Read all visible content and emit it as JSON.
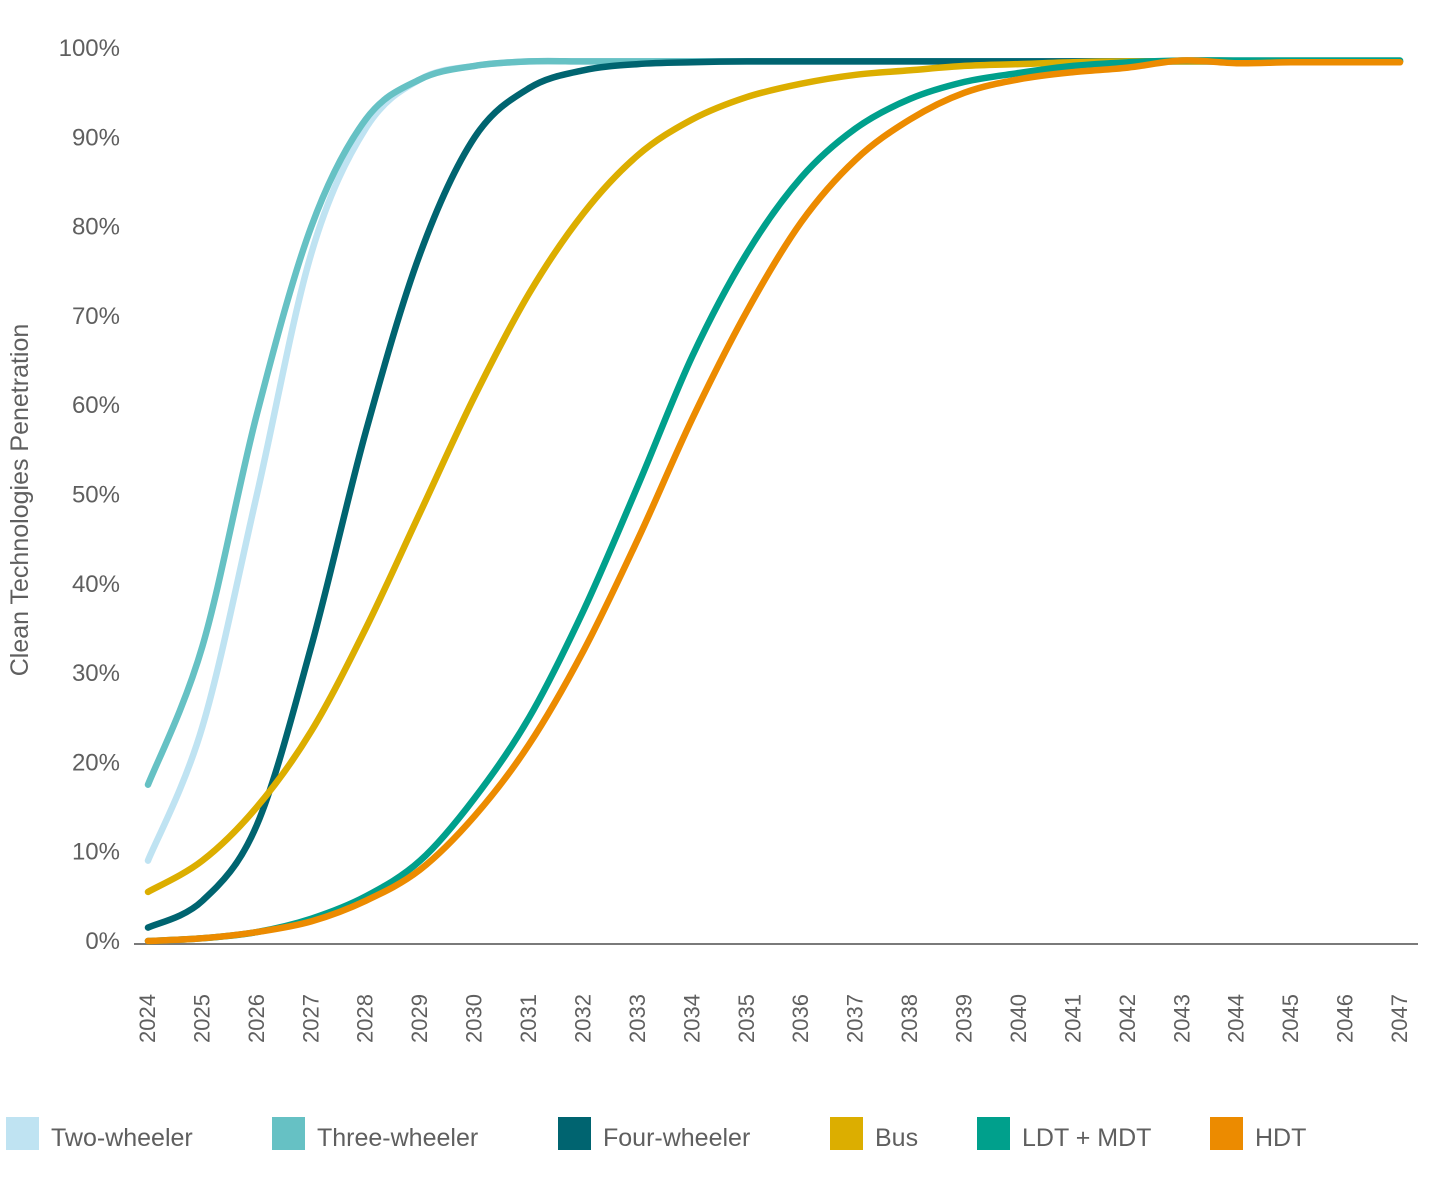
{
  "chart_data": {
    "type": "line",
    "title": "",
    "xlabel": "",
    "ylabel": "Clean Technologies Penetration",
    "x": [
      "2024",
      "2025",
      "2026",
      "2027",
      "2028",
      "2029",
      "2030",
      "2031",
      "2032",
      "2033",
      "2034",
      "2035",
      "2036",
      "2037",
      "2038",
      "2039",
      "2040",
      "2041",
      "2042",
      "2043",
      "2044",
      "2045",
      "2046",
      "2047"
    ],
    "ylim": [
      0,
      100
    ],
    "yticks": [
      0,
      10,
      20,
      30,
      40,
      50,
      60,
      70,
      80,
      90,
      100
    ],
    "ytick_labels": [
      "0%",
      "10%",
      "20%",
      "30%",
      "40%",
      "50%",
      "60%",
      "70%",
      "80%",
      "90%",
      "100%"
    ],
    "grid": false,
    "legend_position": "bottom",
    "series": [
      {
        "name": "Two-wheeler",
        "color": "#bfe3f2",
        "values": [
          9,
          24,
          50,
          77,
          91,
          96.5,
          98,
          98.5,
          98.5,
          98.5,
          98.5,
          98.5,
          98.5,
          98.5,
          98.5,
          98.5,
          98.5,
          98.5,
          98.5,
          98.5,
          98.5,
          98.5,
          98.5,
          98.5
        ]
      },
      {
        "name": "Three-wheeler",
        "color": "#66c1c4",
        "values": [
          17.5,
          33,
          59,
          80,
          92,
          96.5,
          98,
          98.5,
          98.5,
          98.5,
          98.5,
          98.5,
          98.5,
          98.5,
          98.5,
          98.5,
          98.5,
          98.5,
          98.5,
          98.5,
          98.5,
          98.5,
          98.5,
          98.5
        ]
      },
      {
        "name": "Four-wheeler",
        "color": "#006470",
        "values": [
          1.5,
          4.5,
          13,
          33,
          57,
          77,
          90,
          95.5,
          97.5,
          98.2,
          98.4,
          98.5,
          98.5,
          98.5,
          98.5,
          98.5,
          98.5,
          98.5,
          98.5,
          98.5,
          98.5,
          98.5,
          98.5,
          98.5
        ]
      },
      {
        "name": "Bus",
        "color": "#dcae00",
        "values": [
          5.5,
          9,
          15,
          23.5,
          35,
          48,
          61,
          72.5,
          81.5,
          88,
          92,
          94.5,
          96,
          97,
          97.5,
          98,
          98.2,
          98.4,
          98.5,
          98.5,
          98.5,
          98.5,
          98.5,
          98.5
        ]
      },
      {
        "name": "LDT + MDT",
        "color": "#00a08c",
        "values": [
          0,
          0.3,
          1,
          2.5,
          5,
          9,
          16,
          25,
          37,
          51,
          65.5,
          77,
          85.5,
          91,
          94.3,
          96.2,
          97.2,
          98,
          98.4,
          98.6,
          98.6,
          98.6,
          98.6,
          98.6
        ]
      },
      {
        "name": "HDT",
        "color": "#ec8b00",
        "values": [
          0,
          0.3,
          1,
          2.2,
          4.5,
          8,
          14,
          22,
          32.5,
          45,
          58.5,
          70.5,
          80.5,
          87.5,
          92,
          95,
          96.5,
          97.3,
          97.8,
          98.6,
          98.3,
          98.4,
          98.4,
          98.4
        ]
      }
    ]
  }
}
